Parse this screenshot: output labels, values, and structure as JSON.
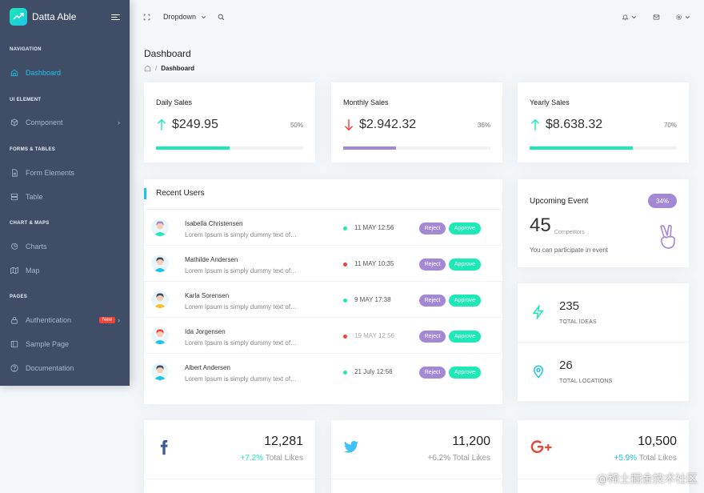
{
  "brand": {
    "name": "Datta Able"
  },
  "sidebar": {
    "captions": [
      "Navigation",
      "UI Element",
      "Forms & Tables",
      "Chart & Maps",
      "Pages"
    ],
    "items": [
      {
        "label": "Dashboard",
        "icon": "home-icon"
      },
      {
        "label": "Component",
        "icon": "box-icon"
      },
      {
        "label": "Form Elements",
        "icon": "file-text-icon"
      },
      {
        "label": "Table",
        "icon": "server-icon"
      },
      {
        "label": "Charts",
        "icon": "pie-chart-icon"
      },
      {
        "label": "Map",
        "icon": "map-icon"
      },
      {
        "label": "Authentication",
        "icon": "lock-icon",
        "badge": "New"
      },
      {
        "label": "Sample Page",
        "icon": "sidebar-icon"
      },
      {
        "label": "Documentation",
        "icon": "help-circle-icon"
      }
    ]
  },
  "topbar": {
    "dropdown": "Dropdown"
  },
  "page": {
    "title": "Dashboard",
    "breadcrumb": "Dashboard"
  },
  "sales": [
    {
      "title": "Daily Sales",
      "amount": "$249.95",
      "pct": "50%",
      "progress": 0.5,
      "trend": "up",
      "color": "#1de9b6"
    },
    {
      "title": "Monthly Sales",
      "amount": "$2.942.32",
      "pct": "36%",
      "progress": 0.36,
      "trend": "down",
      "color": "#a389d4"
    },
    {
      "title": "Yearly Sales",
      "amount": "$8.638.32",
      "pct": "70%",
      "progress": 0.7,
      "trend": "up",
      "color": "#1de9b6"
    }
  ],
  "recent_users": {
    "title": "Recent Users",
    "reject_label": "Reject",
    "approve_label": "Approve",
    "rows": [
      {
        "name": "Isabella Christensen",
        "desc": "Lorem Ipsum is simply dummy text of…",
        "date": "11 MAY 12:56",
        "status": "green"
      },
      {
        "name": "Mathilde Andersen",
        "desc": "Lorem Ipsum is simply dummy text of…",
        "date": "11 MAY 10:35",
        "status": "red"
      },
      {
        "name": "Karla Sorensen",
        "desc": "Lorem Ipsum is simply dummy text of…",
        "date": "9 MAY 17:38",
        "status": "green"
      },
      {
        "name": "Ida Jorgensen",
        "desc": "Lorem Ipsum is simply dummy text of…",
        "date": "19 MAY 12:56",
        "status": "red"
      },
      {
        "name": "Albert Andersen",
        "desc": "Lorem Ipsum is simply dummy text of…",
        "date": "21 July 12:56",
        "status": "green"
      }
    ]
  },
  "event": {
    "title": "Upcoming Event",
    "badge": "34%",
    "count": "45",
    "count_label": "Competitors",
    "note": "You can participate in event"
  },
  "stats": [
    {
      "value": "235",
      "label": "TOTAL IDEAS",
      "icon": "zap-icon"
    },
    {
      "value": "26",
      "label": "TOTAL LOCATIONS",
      "icon": "map-pin-icon"
    }
  ],
  "social": [
    {
      "network": "facebook",
      "value": "12,281",
      "growth": "+7.2%",
      "growth_label": "Total Likes",
      "color": "#3b5998"
    },
    {
      "network": "twitter",
      "value": "11,200",
      "growth": "+6.2%",
      "growth_label": "Total Likes",
      "color": "#42c0fb"
    },
    {
      "network": "google-plus",
      "value": "10,500",
      "growth": "+5.9%",
      "growth_label": "Total Likes",
      "color": "#dd4b39"
    }
  ],
  "colors": {
    "sidebar": "#3f4d67",
    "accent": "#1dc4e9",
    "purple": "#a389d4",
    "green": "#1de9b6",
    "red": "#f44236"
  },
  "watermark": "@稀土掘金技术社区"
}
